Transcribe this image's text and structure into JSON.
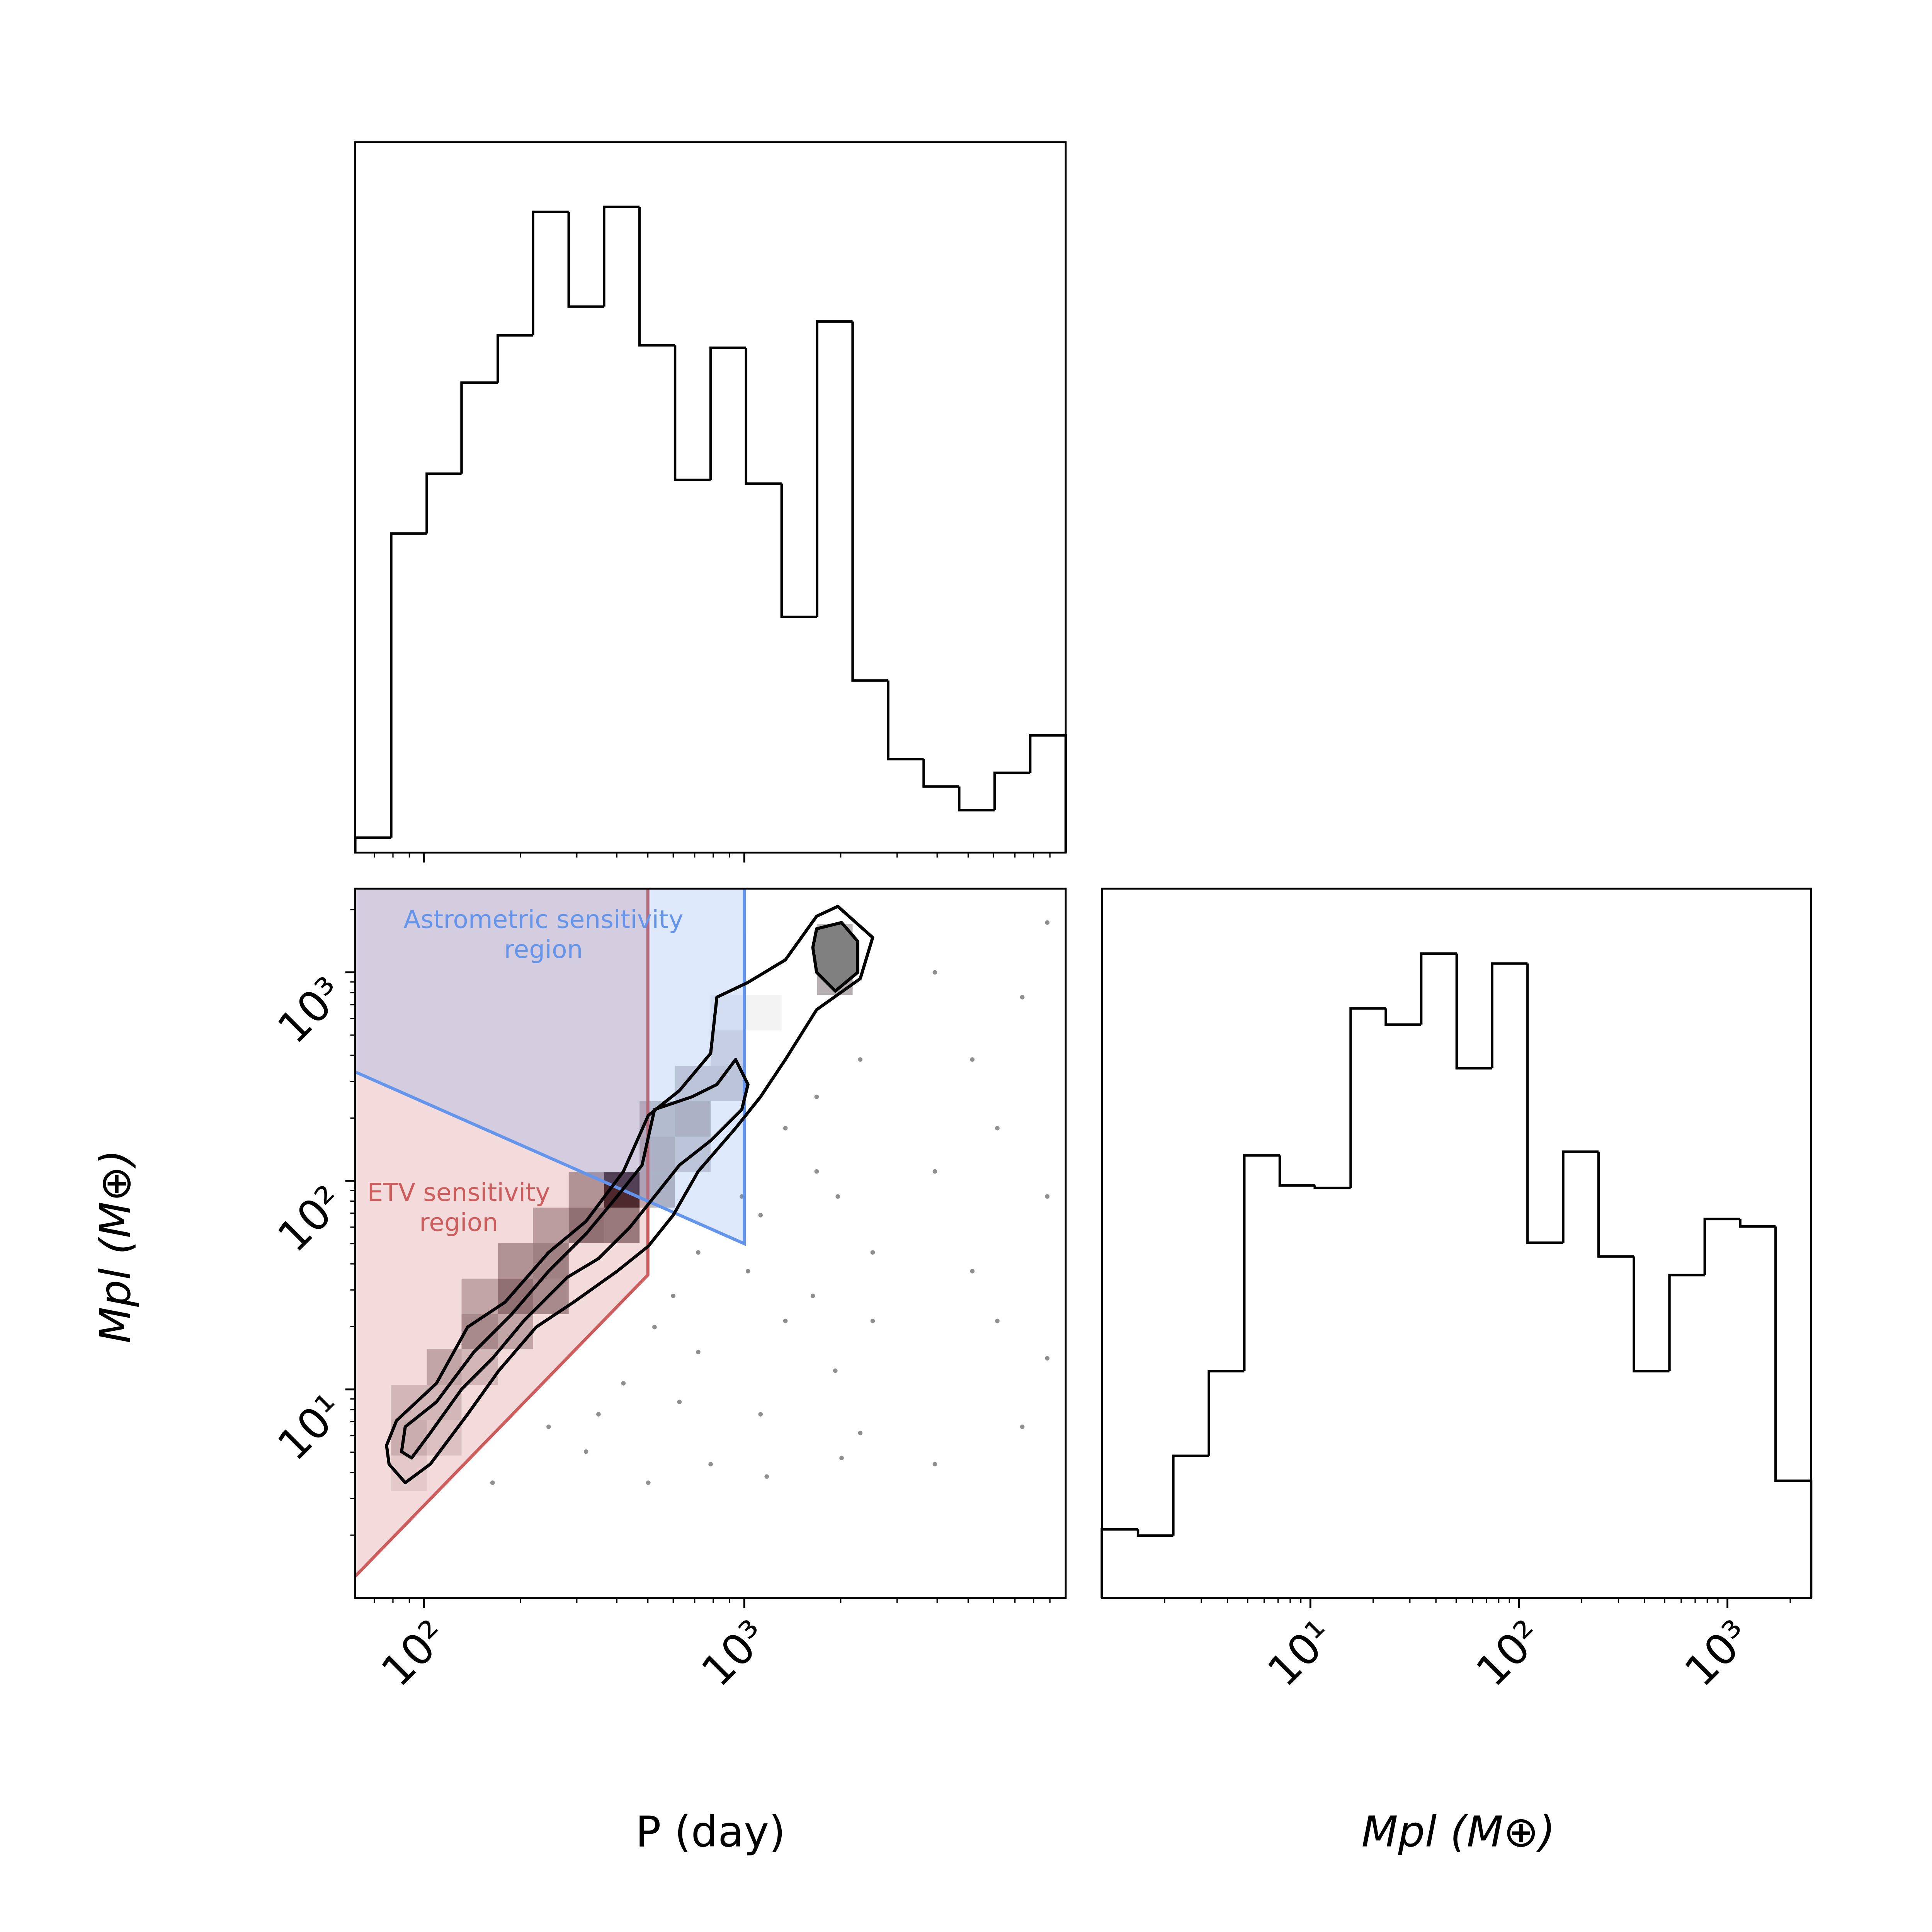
{
  "chart_data": [
    {
      "type": "histogram",
      "xscale": "log",
      "bins": [
        61,
        79,
        102,
        131,
        170,
        219,
        283,
        365,
        471,
        608,
        785,
        1013,
        1308,
        1688,
        2179,
        2813,
        3632,
        4688,
        6051,
        7811,
        10083
      ],
      "values": [
        12,
        256,
        304,
        377,
        415,
        514,
        438,
        518,
        407,
        299,
        405,
        296,
        189,
        426,
        138,
        75,
        53,
        34,
        64,
        94
      ],
      "color": "#000000",
      "xlim": [
        61,
        10083
      ],
      "ylim": [
        0,
        570
      ],
      "xticks": [
        100,
        1000
      ],
      "xtick_labels": false,
      "xminorticks": [
        70,
        80,
        90,
        200,
        300,
        400,
        500,
        600,
        700,
        800,
        900,
        2000,
        3000,
        4000,
        5000,
        6000,
        7000,
        8000,
        9000
      ]
    },
    {
      "type": "histogram",
      "xscale": "log",
      "xlabel": "Mpl (M⊕)",
      "bins": [
        1.0,
        1.49,
        2.2,
        3.26,
        4.82,
        7.13,
        10.5,
        15.6,
        23.0,
        34.0,
        50.3,
        74.4,
        110,
        163,
        241,
        356,
        527,
        778,
        1151,
        1702,
        2518
      ],
      "values": [
        55,
        50,
        114,
        182,
        355,
        331,
        329,
        473,
        460,
        517,
        425,
        509,
        285,
        358,
        274,
        182,
        259,
        304,
        298,
        94
      ],
      "color": "#000000",
      "xlim": [
        1.0,
        2518
      ],
      "ylim": [
        0,
        569
      ],
      "xticks": [
        {
          "value": 10,
          "label": "10¹"
        },
        {
          "value": 100,
          "label": "10²"
        },
        {
          "value": 1000,
          "label": "10³"
        }
      ],
      "xminorticks": [
        2,
        3,
        4,
        5,
        6,
        7,
        8,
        9,
        20,
        30,
        40,
        50,
        60,
        70,
        80,
        90,
        200,
        300,
        400,
        500,
        600,
        700,
        800,
        900,
        2000
      ]
    },
    {
      "type": "hist2d",
      "xscale": "log",
      "yscale": "log",
      "xlabel": "P (day)",
      "ylabel": "Mpl (M⊕)",
      "xlim": [
        61,
        10083
      ],
      "ylim": [
        1.0,
        2518
      ],
      "xticks": [
        {
          "value": 100,
          "label": "10²"
        },
        {
          "value": 1000,
          "label": "10³"
        }
      ],
      "xminorticks": [
        70,
        80,
        90,
        200,
        300,
        400,
        500,
        600,
        700,
        800,
        900,
        2000,
        3000,
        4000,
        5000,
        6000,
        7000,
        8000,
        9000
      ],
      "yticks": [
        {
          "value": 10,
          "label": "10¹"
        },
        {
          "value": 100,
          "label": "10²"
        },
        {
          "value": 1000,
          "label": "10³"
        }
      ],
      "yminorticks": [
        2,
        3,
        4,
        5,
        6,
        7,
        8,
        9,
        20,
        30,
        40,
        50,
        60,
        70,
        80,
        90,
        200,
        300,
        400,
        500,
        600,
        700,
        800,
        900,
        2000
      ],
      "xbins": [
        61,
        79,
        102,
        131,
        170,
        219,
        283,
        365,
        471,
        608,
        785,
        1013,
        1308,
        1688,
        2179,
        2813,
        3632,
        4688,
        6051,
        7811,
        10083
      ],
      "ybins": [
        1.0,
        1.49,
        2.2,
        3.26,
        4.82,
        7.13,
        10.5,
        15.6,
        23.0,
        34.0,
        50.3,
        74.4,
        110,
        163,
        241,
        356,
        527,
        778,
        1151,
        1702,
        2518
      ],
      "cell_color": "#2a1a20",
      "z": [
        [
          0,
          0,
          0,
          0,
          0,
          0,
          0,
          0,
          0,
          0,
          0,
          0,
          0,
          0,
          0,
          0,
          0,
          0,
          0,
          0
        ],
        [
          0,
          0,
          0,
          0,
          0,
          0,
          0,
          0,
          0,
          0,
          0,
          0,
          0,
          0,
          0,
          0,
          0,
          0,
          0,
          0
        ],
        [
          0,
          0,
          0,
          0,
          0,
          0,
          0,
          0,
          0,
          0,
          0,
          0,
          0,
          0,
          0,
          0,
          0,
          0,
          0,
          0
        ],
        [
          0,
          0.1,
          0,
          0,
          0,
          0,
          0,
          0,
          0,
          0,
          0,
          0,
          0,
          0,
          0,
          0,
          0,
          0,
          0,
          0
        ],
        [
          0,
          0.25,
          0.15,
          0,
          0,
          0,
          0,
          0,
          0,
          0,
          0,
          0,
          0,
          0,
          0,
          0,
          0,
          0,
          0,
          0
        ],
        [
          0,
          0.2,
          0.2,
          0,
          0,
          0,
          0,
          0,
          0,
          0,
          0,
          0,
          0,
          0,
          0,
          0,
          0,
          0,
          0,
          0
        ],
        [
          0,
          0,
          0.3,
          0.2,
          0,
          0,
          0,
          0,
          0,
          0,
          0,
          0,
          0,
          0,
          0,
          0,
          0,
          0,
          0,
          0
        ],
        [
          0,
          0,
          0,
          0.45,
          0.3,
          0,
          0,
          0,
          0,
          0,
          0,
          0,
          0,
          0,
          0,
          0,
          0,
          0,
          0,
          0
        ],
        [
          0,
          0,
          0,
          0.3,
          0.6,
          0.45,
          0,
          0,
          0,
          0,
          0,
          0,
          0,
          0,
          0,
          0,
          0,
          0,
          0,
          0
        ],
        [
          0,
          0,
          0,
          0,
          0.4,
          0.5,
          0,
          0,
          0,
          0,
          0,
          0,
          0,
          0,
          0,
          0,
          0,
          0,
          0,
          0
        ],
        [
          0,
          0,
          0,
          0,
          0,
          0.35,
          0.6,
          0.55,
          0,
          0,
          0,
          0,
          0,
          0,
          0,
          0,
          0,
          0,
          0,
          0
        ],
        [
          0,
          0,
          0,
          0,
          0,
          0,
          0.4,
          1,
          0.3,
          0,
          0,
          0,
          0,
          0,
          0,
          0,
          0,
          0,
          0,
          0
        ],
        [
          0,
          0,
          0,
          0,
          0,
          0,
          0,
          0,
          0.3,
          0.2,
          0,
          0,
          0,
          0,
          0,
          0,
          0,
          0,
          0,
          0
        ],
        [
          0,
          0,
          0,
          0,
          0,
          0,
          0,
          0,
          0.25,
          0.3,
          0,
          0,
          0,
          0,
          0,
          0,
          0,
          0,
          0,
          0
        ],
        [
          0,
          0,
          0,
          0,
          0,
          0,
          0,
          0,
          0,
          0.2,
          0.2,
          0,
          0,
          0,
          0,
          0,
          0,
          0,
          0,
          0
        ],
        [
          0,
          0,
          0,
          0,
          0,
          0,
          0,
          0,
          0,
          0,
          0.15,
          0,
          0,
          0,
          0,
          0,
          0,
          0,
          0,
          0
        ],
        [
          0,
          0,
          0,
          0,
          0,
          0,
          0,
          0,
          0,
          0,
          0.05,
          0.05,
          0,
          0,
          0,
          0,
          0,
          0,
          0,
          0
        ],
        [
          0,
          0,
          0,
          0,
          0,
          0,
          0,
          0,
          0,
          0,
          0,
          0,
          0,
          0.35,
          0,
          0,
          0,
          0,
          0,
          0
        ],
        [
          0,
          0,
          0,
          0,
          0,
          0,
          0,
          0,
          0,
          0,
          0,
          0,
          0,
          0.3,
          0,
          0,
          0,
          0,
          0,
          0
        ],
        [
          0,
          0,
          0,
          0,
          0,
          0,
          0,
          0,
          0,
          0,
          0,
          0,
          0,
          0,
          0,
          0,
          0,
          0,
          0,
          0
        ]
      ],
      "scatter": {
        "color": "#444444",
        "x": [
          600,
          717.9,
          1027,
          1344,
          1682,
          1924,
          2517,
          2302,
          1124,
          785.3,
          501.5,
          320.6,
          245,
          419.4,
          163.7,
          1344,
          1682,
          2302,
          1959,
          982.3,
          717.9,
          524.5,
          2517,
          2013,
          1175,
          627.4,
          350.6,
          1637,
          1124,
          3936,
          6166,
          8831,
          5152,
          7379,
          3936,
          6166,
          8831,
          5152,
          7379,
          3936,
          8831
        ],
        "y": [
          28.1,
          15.1,
          36.9,
          21.3,
          111,
          12.3,
          45.4,
          6.18,
          7.6,
          4.38,
          3.57,
          5.03,
          6.62,
          10.7,
          3.57,
          179,
          253,
          382,
          84.2,
          84.2,
          45.4,
          19.9,
          21.3,
          4.69,
          3.82,
          8.71,
          7.6,
          28.1,
          68.5,
          1000,
          179,
          1733,
          36.9,
          6.62,
          4.38,
          21.3,
          84.2,
          382,
          760,
          111,
          14.1
        ]
      },
      "regions": [
        {
          "label": [
            "ETV sensitivity",
            "region"
          ],
          "color": "#cd5c5c",
          "x": [
            61,
            500,
            500
          ],
          "y": [
            1.27,
            35.4,
            2518
          ]
        },
        {
          "label": [
            "Astrometric sensitivity",
            "region"
          ],
          "color": "#6495ed",
          "x": [
            61,
            1000,
            1000
          ],
          "y": [
            333,
            50,
            2518
          ]
        }
      ],
      "contours": [
        {
          "color": "#000000",
          "x": [
            76.4,
            82.1,
            109.4,
            136.8,
            179.1,
            245.0,
            320.6,
            419.4,
            501.5,
            627.4,
            785.3,
            821.2,
            1027,
            1344,
            1682,
            1959,
            2517,
            2302,
            1682,
            1344,
            1124,
            939.4,
            717.9,
            600.0,
            501.5,
            401.0,
            293.1,
            224.0,
            171.2,
            136.8,
            104.6,
            87.4,
            77.8
          ],
          "y": [
            5.39,
            7.09,
            10.7,
            19.9,
            26.2,
            45.4,
            64.0,
            111,
            206,
            271,
            409,
            760,
            895,
            1148,
            1858,
            2072,
            1469,
            933,
            662,
            382,
            253,
            179,
            111,
            68.5,
            48.6,
            36.9,
            26.2,
            19.9,
            12.3,
            7.6,
            4.38,
            3.57,
            4.38
          ]
        },
        {
          "color": "#000000",
          "x": [
            85.1,
            87.4,
            109.4,
            143.1,
            187.2,
            245.0,
            320.6,
            401.0,
            479.6,
            524.5,
            686.4,
            821.2,
            939.4,
            1027,
            982.3,
            785.3,
            627.4,
            524.5,
            438.5,
            350.6,
            280.3,
            204.8,
            163.7,
            130.9,
            104.6,
            91.5
          ],
          "y": [
            5.03,
            6.62,
            8.71,
            15.1,
            22.8,
            36.9,
            55.7,
            84.2,
            119,
            220,
            253,
            290,
            382,
            290,
            220,
            156,
            119,
            84.2,
            59.7,
            42.4,
            34.5,
            21.3,
            14.1,
            10,
            6.18,
            4.69
          ]
        },
        {
          "color": "#000000",
          "fill": "#808080",
          "x": [
            1682,
            2013,
            2261,
            2261,
            1924,
            1682,
            1637
          ],
          "y": [
            1618,
            1733,
            1408,
            1000,
            813,
            1000,
            1316
          ]
        }
      ]
    }
  ]
}
